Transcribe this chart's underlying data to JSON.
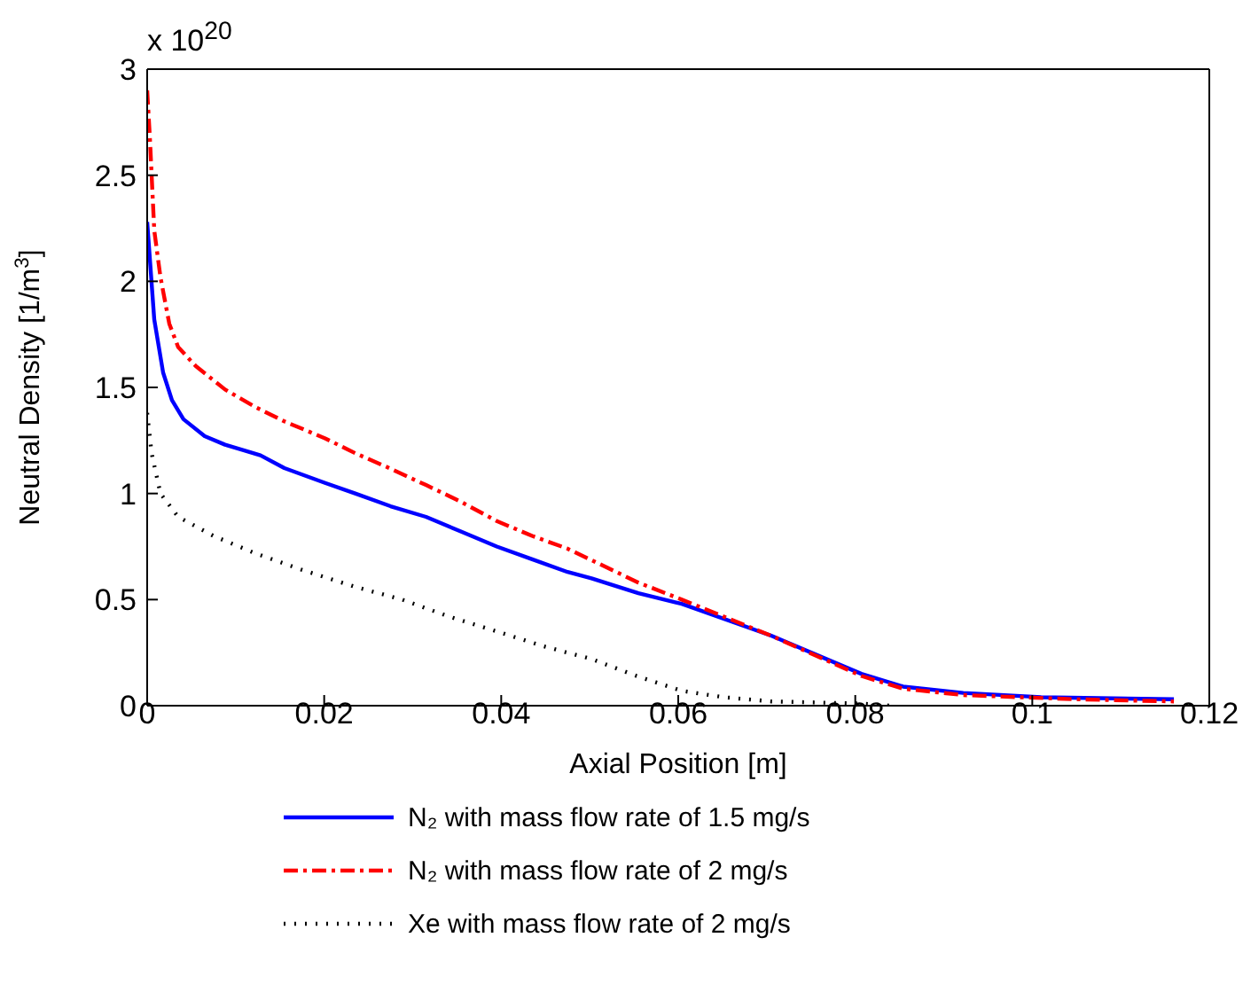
{
  "chart_data": {
    "type": "line",
    "xlabel": "Axial Position [m]",
    "ylabel": "Neutral Density [1/m$^{3}$]",
    "annotations": [
      "x 10$^{20}$"
    ],
    "xlim": [
      0,
      0.12
    ],
    "xticks": [
      0,
      0.02,
      0.04,
      0.06,
      0.08,
      0.1,
      0.12
    ],
    "ylim": [
      0,
      3
    ],
    "yticks": [
      0,
      0.5,
      1,
      1.5,
      2,
      2.5,
      3
    ],
    "legend": "bottom",
    "marker": "none",
    "series": [
      {
        "name": "N₂ with mass flow rate of 1.5 mg/s",
        "color": "#0000ff",
        "line_style": "solid",
        "x": [
          0,
          0.0008,
          0.0018,
          0.0028,
          0.0041,
          0.0065,
          0.0088,
          0.0128,
          0.0155,
          0.0201,
          0.0235,
          0.0275,
          0.0315,
          0.0355,
          0.0395,
          0.0435,
          0.0475,
          0.0502,
          0.0555,
          0.0604,
          0.0705,
          0.0807,
          0.0854,
          0.0922,
          0.101,
          0.116
        ],
        "values": [
          2.28,
          1.82,
          1.57,
          1.44,
          1.35,
          1.27,
          1.23,
          1.18,
          1.12,
          1.05,
          1.0,
          0.94,
          0.89,
          0.82,
          0.75,
          0.69,
          0.63,
          0.6,
          0.53,
          0.48,
          0.33,
          0.15,
          0.09,
          0.06,
          0.04,
          0.03
        ]
      },
      {
        "name": "N₂ with mass flow rate of 2 mg/s",
        "color": "#ff0000",
        "line_style": "dashed",
        "x": [
          0,
          0.0003,
          0.0008,
          0.0015,
          0.0025,
          0.0035,
          0.0055,
          0.0088,
          0.0121,
          0.0155,
          0.0201,
          0.0235,
          0.0268,
          0.0315,
          0.0355,
          0.0395,
          0.0435,
          0.0475,
          0.0515,
          0.0555,
          0.0604,
          0.0705,
          0.0807,
          0.0854,
          0.0922,
          0.105,
          0.116
        ],
        "values": [
          2.9,
          2.68,
          2.24,
          2.02,
          1.8,
          1.69,
          1.6,
          1.49,
          1.41,
          1.34,
          1.26,
          1.19,
          1.13,
          1.04,
          0.96,
          0.87,
          0.8,
          0.74,
          0.66,
          0.58,
          0.5,
          0.33,
          0.14,
          0.08,
          0.05,
          0.03,
          0.02
        ]
      },
      {
        "name": "Xe with mass flow rate of 2 mg/s",
        "color": "#000000",
        "line_style": "dotted",
        "x": [
          0,
          0.0005,
          0.0015,
          0.0035,
          0.0075,
          0.0121,
          0.0175,
          0.0235,
          0.0288,
          0.0341,
          0.0395,
          0.0448,
          0.0502,
          0.0553,
          0.0604,
          0.0651,
          0.0705,
          0.0807,
          0.084
        ],
        "values": [
          1.38,
          1.19,
          1.0,
          0.89,
          0.8,
          0.72,
          0.64,
          0.56,
          0.5,
          0.42,
          0.35,
          0.28,
          0.22,
          0.14,
          0.07,
          0.04,
          0.02,
          0.01,
          0
        ]
      }
    ]
  }
}
